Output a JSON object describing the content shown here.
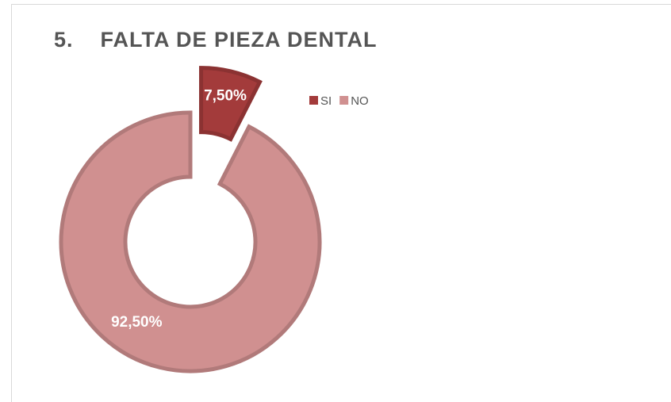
{
  "chart_data": {
    "type": "donut",
    "title": "5.    FALTA DE PIEZA DENTAL",
    "categories": [
      "SI",
      "NO"
    ],
    "values": [
      7.5,
      92.5
    ],
    "value_labels": [
      "7,50%",
      "92,50%"
    ],
    "colors": [
      "#a33b3b",
      "#d09090"
    ],
    "legend": "top-right",
    "exploded": [
      true,
      false
    ]
  }
}
